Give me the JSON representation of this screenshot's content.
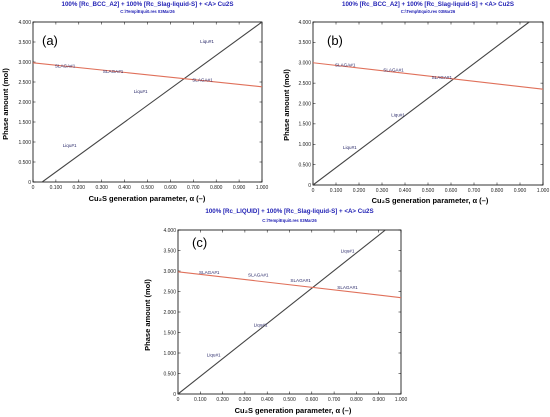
{
  "charts": [
    {
      "chart_data": {
        "type": "line",
        "panel_label": "(a)",
        "title": "100% [Rc_BCC_A2]  +  100% [Rc_Slag-liquid-S]  +  <A> Cu2S",
        "subtitle": "C:\\Temp\\Equi0.res  03Mar26",
        "xlabel": "Cu₂S generation parameter, α (–)",
        "ylabel": "Phase amount (mol)",
        "xlim": [
          0,
          1
        ],
        "ylim": [
          0,
          4
        ],
        "xticks": [
          "0",
          "0.100",
          "0.200",
          "0.300",
          "0.400",
          "0.500",
          "0.600",
          "0.700",
          "0.800",
          "0.900",
          "1.000"
        ],
        "yticks": [
          "0",
          "0.500",
          "1.000",
          "1.500",
          "2.000",
          "2.500",
          "3.000",
          "3.500",
          "4.000"
        ],
        "series": [
          {
            "color": "#444444",
            "x": [
              0.04,
              1.0
            ],
            "y": [
              0.0,
              4.0
            ],
            "labels": [
              {
                "text": "Liqu#1",
                "x": 0.16,
                "y": 0.88
              },
              {
                "text": "Liqu#1",
                "x": 0.47,
                "y": 2.22
              },
              {
                "text": "Liqu#1",
                "x": 0.76,
                "y": 3.48
              }
            ]
          },
          {
            "color": "#e0705a",
            "x": [
              0.0,
              1.0
            ],
            "y": [
              2.98,
              2.38
            ],
            "labels": [
              {
                "text": "SLAGA#1",
                "x": 0.14,
                "y": 2.86
              },
              {
                "text": "SLAGA#1",
                "x": 0.35,
                "y": 2.73
              },
              {
                "text": "SLAGA#1",
                "x": 0.74,
                "y": 2.51
              }
            ]
          }
        ]
      }
    },
    {
      "chart_data": {
        "type": "line",
        "panel_label": "(b)",
        "title": "100% [Rc_BCC_A2]  +  100% [Rc_Slag-liquid-S]  +  <A> Cu2S",
        "subtitle": "C:\\Temp\\Equi0.res  03Mar26",
        "xlabel": "Cu₂S generation parameter, α (–)",
        "ylabel": "Phase amount (mol)",
        "xlim": [
          0,
          1
        ],
        "ylim": [
          0,
          4
        ],
        "xticks": [
          "0",
          "0.100",
          "0.200",
          "0.300",
          "0.400",
          "0.500",
          "0.600",
          "0.700",
          "0.800",
          "0.900",
          "1.000"
        ],
        "yticks": [
          "0",
          "0.500",
          "1.000",
          "1.500",
          "2.000",
          "2.500",
          "3.000",
          "3.500",
          "4.000"
        ],
        "series": [
          {
            "color": "#444444",
            "x": [
              0.0,
              0.94
            ],
            "y": [
              0.0,
              4.0
            ],
            "labels": [
              {
                "text": "Liqu#1",
                "x": 0.16,
                "y": 0.88
              },
              {
                "text": "Liqu#1",
                "x": 0.37,
                "y": 1.68
              }
            ]
          },
          {
            "color": "#e0705a",
            "x": [
              0.0,
              1.0
            ],
            "y": [
              3.0,
              2.35
            ],
            "labels": [
              {
                "text": "SLAGA#1",
                "x": 0.14,
                "y": 2.91
              },
              {
                "text": "SLAGA#1",
                "x": 0.35,
                "y": 2.78
              },
              {
                "text": "SLAGA#1",
                "x": 0.56,
                "y": 2.6
              }
            ]
          }
        ]
      }
    },
    {
      "chart_data": {
        "type": "line",
        "panel_label": "(c)",
        "title": "100% [Rc_LIQUID]  +  100% [Rc_Slag-liquid-S]  +  <A> Cu2S",
        "subtitle": "C:\\Temp\\Equi0.res  03Mar26",
        "xlabel": "Cu₂S generation parameter, α (–)",
        "ylabel": "Phase amount (mol)",
        "xlim": [
          0,
          1
        ],
        "ylim": [
          0,
          4
        ],
        "xticks": [
          "0",
          "0.100",
          "0.200",
          "0.300",
          "0.400",
          "0.500",
          "0.600",
          "0.700",
          "0.800",
          "0.900",
          "1.000"
        ],
        "yticks": [
          "0",
          "0.500",
          "1.000",
          "1.500",
          "2.000",
          "2.500",
          "3.000",
          "3.500",
          "4.000"
        ],
        "series": [
          {
            "color": "#444444",
            "x": [
              0.0,
              0.93
            ],
            "y": [
              0.0,
              4.0
            ],
            "labels": [
              {
                "text": "Liqu#1",
                "x": 0.16,
                "y": 0.92
              },
              {
                "text": "Liqu#1",
                "x": 0.37,
                "y": 1.65
              },
              {
                "text": "Liqu#1",
                "x": 0.76,
                "y": 3.45
              }
            ]
          },
          {
            "color": "#e0705a",
            "x": [
              0.0,
              1.0
            ],
            "y": [
              2.98,
              2.35
            ],
            "labels": [
              {
                "text": "SLAGA#1",
                "x": 0.14,
                "y": 2.93
              },
              {
                "text": "SLAGA#1",
                "x": 0.36,
                "y": 2.86
              },
              {
                "text": "SLAGA#1",
                "x": 0.55,
                "y": 2.73
              },
              {
                "text": "SLAGA#1",
                "x": 0.76,
                "y": 2.56
              }
            ]
          }
        ]
      }
    }
  ]
}
